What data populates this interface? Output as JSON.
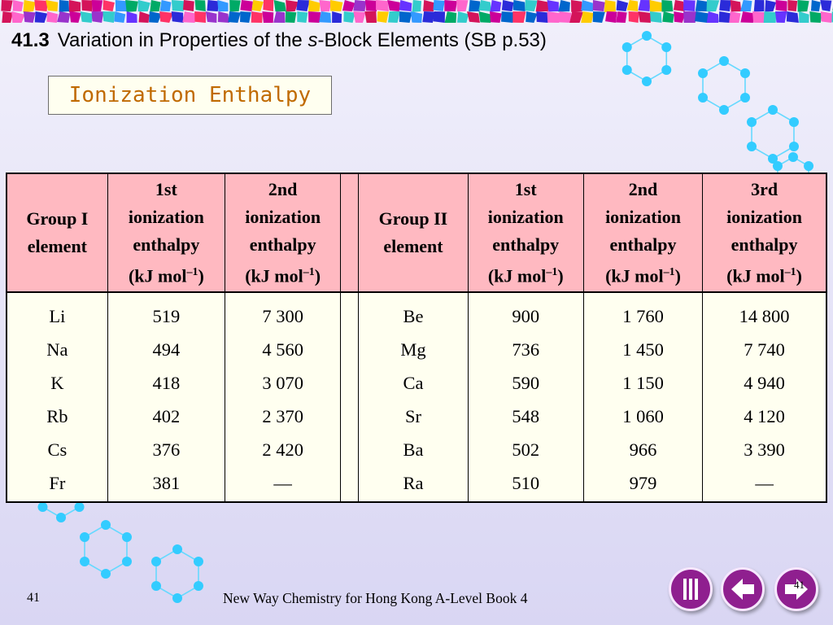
{
  "title": {
    "number": "41.3",
    "text_before": "Variation in Properties of the ",
    "italic": "s",
    "text_after": "-Block Elements (SB p.53)"
  },
  "subtitle": "Ionization Enthalpy",
  "table": {
    "headers": {
      "g1": [
        "Group I",
        "element"
      ],
      "g1_ie1": [
        "1st",
        "ionization",
        "enthalpy",
        "(kJ mol–1)"
      ],
      "g1_ie2": [
        "2nd",
        "ionization",
        "enthalpy",
        "(kJ mol–1)"
      ],
      "g2": [
        "Group II",
        "element"
      ],
      "g2_ie1": [
        "1st",
        "ionization",
        "enthalpy",
        "(kJ mol–1)"
      ],
      "g2_ie2": [
        "2nd",
        "ionization",
        "enthalpy",
        "(kJ mol–1)"
      ],
      "g2_ie3": [
        "3rd",
        "ionization",
        "enthalpy",
        "(kJ mol–1)"
      ]
    },
    "rows": [
      [
        "Li",
        "519",
        "7 300",
        "Be",
        "900",
        "1 760",
        "14 800"
      ],
      [
        "Na",
        "494",
        "4 560",
        "Mg",
        "736",
        "1 450",
        "7 740"
      ],
      [
        "K",
        "418",
        "3 070",
        "Ca",
        "590",
        "1 150",
        "4 940"
      ],
      [
        "Rb",
        "402",
        "2 370",
        "Sr",
        "548",
        "1 060",
        "4 120"
      ],
      [
        "Cs",
        "376",
        "2 420",
        "Ba",
        "502",
        "966",
        "3 390"
      ],
      [
        "Fr",
        "381",
        "—",
        "Ra",
        "510",
        "979",
        "—"
      ]
    ]
  },
  "footer": {
    "slide_number": "41",
    "book": "New Way Chemistry for Hong Kong A-Level Book 4",
    "nav_slide_number": "41"
  },
  "nav": {
    "index_icon": "index-icon",
    "back_icon": "back-arrow-icon",
    "next_icon": "next-arrow-icon"
  },
  "colors": {
    "header_bg": "#ffb9c1",
    "cell_bg": "#fffff0",
    "subtitle_text": "#c06a00",
    "nav_purple": "#8f1f8f",
    "molecule": "#33ccff"
  }
}
